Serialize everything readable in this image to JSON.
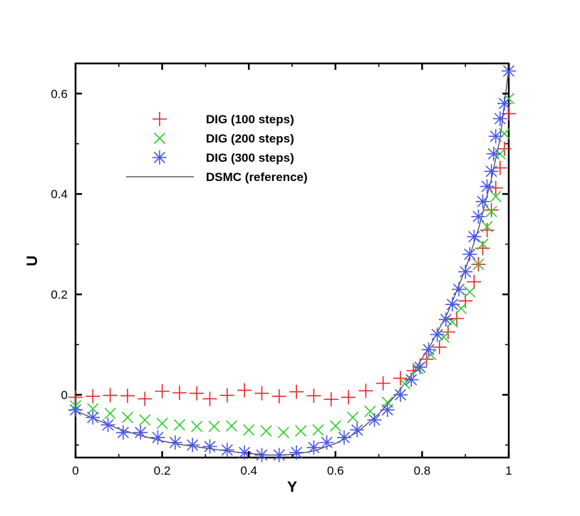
{
  "chart_data": {
    "type": "scatter",
    "title": "",
    "xlabel": "Y",
    "ylabel": "U",
    "xlim": [
      0,
      1
    ],
    "ylim": [
      -0.125,
      0.66
    ],
    "xticks": [
      {
        "value": 0,
        "label": "0"
      },
      {
        "value": 0.2,
        "label": "0.2"
      },
      {
        "value": 0.4,
        "label": "0.4"
      },
      {
        "value": 0.6,
        "label": "0.6"
      },
      {
        "value": 0.8,
        "label": "0.8"
      },
      {
        "value": 1,
        "label": "1"
      }
    ],
    "yticks": [
      {
        "value": 0,
        "label": "0"
      },
      {
        "value": 0.2,
        "label": "0.2"
      },
      {
        "value": 0.4,
        "label": "0.4"
      },
      {
        "value": 0.6,
        "label": "0.6"
      }
    ],
    "grid": false,
    "legend_position": "top-left",
    "series": [
      {
        "name": "DIG (100 steps)",
        "marker": "plus",
        "color": "#e8262b",
        "x": [
          0.0,
          0.04,
          0.08,
          0.12,
          0.16,
          0.2,
          0.24,
          0.28,
          0.31,
          0.35,
          0.39,
          0.43,
          0.47,
          0.51,
          0.55,
          0.59,
          0.63,
          0.67,
          0.71,
          0.75,
          0.78,
          0.81,
          0.84,
          0.86,
          0.88,
          0.9,
          0.92,
          0.93,
          0.94,
          0.95,
          0.96,
          0.97,
          0.98,
          0.99,
          1.0
        ],
        "values": [
          -0.005,
          -0.003,
          -0.001,
          -0.002,
          -0.008,
          0.007,
          0.004,
          0.003,
          -0.008,
          -0.001,
          0.009,
          0.003,
          -0.003,
          0.006,
          -0.002,
          -0.009,
          -0.005,
          0.008,
          0.023,
          0.033,
          0.048,
          0.071,
          0.095,
          0.125,
          0.152,
          0.187,
          0.225,
          0.26,
          0.292,
          0.328,
          0.368,
          0.412,
          0.452,
          0.49,
          0.56
        ]
      },
      {
        "name": "DIG (200 steps)",
        "marker": "cross",
        "color": "#2ecc2e",
        "x": [
          0.0,
          0.04,
          0.08,
          0.12,
          0.16,
          0.2,
          0.24,
          0.28,
          0.32,
          0.36,
          0.4,
          0.44,
          0.48,
          0.52,
          0.56,
          0.6,
          0.64,
          0.68,
          0.72,
          0.76,
          0.79,
          0.82,
          0.85,
          0.87,
          0.89,
          0.91,
          0.93,
          0.94,
          0.95,
          0.96,
          0.97,
          0.98,
          0.99,
          1.0
        ],
        "values": [
          -0.022,
          -0.028,
          -0.037,
          -0.045,
          -0.05,
          -0.057,
          -0.06,
          -0.063,
          -0.063,
          -0.062,
          -0.07,
          -0.072,
          -0.075,
          -0.072,
          -0.07,
          -0.062,
          -0.045,
          -0.033,
          -0.015,
          0.022,
          0.052,
          0.08,
          0.115,
          0.145,
          0.172,
          0.205,
          0.26,
          0.3,
          0.335,
          0.365,
          0.395,
          0.48,
          0.52,
          0.59
        ]
      },
      {
        "name": "DIG (300 steps)",
        "marker": "asterisk",
        "color": "#4a57e6",
        "x": [
          0.0,
          0.04,
          0.075,
          0.11,
          0.15,
          0.19,
          0.23,
          0.27,
          0.31,
          0.35,
          0.39,
          0.43,
          0.47,
          0.51,
          0.55,
          0.58,
          0.62,
          0.65,
          0.69,
          0.72,
          0.75,
          0.775,
          0.795,
          0.815,
          0.835,
          0.855,
          0.87,
          0.885,
          0.9,
          0.91,
          0.92,
          0.93,
          0.94,
          0.95,
          0.96,
          0.965,
          0.97,
          0.98,
          0.99,
          1.0
        ],
        "values": [
          -0.03,
          -0.045,
          -0.06,
          -0.075,
          -0.075,
          -0.085,
          -0.095,
          -0.1,
          -0.103,
          -0.11,
          -0.115,
          -0.12,
          -0.12,
          -0.115,
          -0.105,
          -0.095,
          -0.085,
          -0.07,
          -0.05,
          -0.03,
          0.0,
          0.03,
          0.055,
          0.09,
          0.12,
          0.15,
          0.18,
          0.21,
          0.245,
          0.28,
          0.315,
          0.355,
          0.385,
          0.415,
          0.445,
          0.48,
          0.515,
          0.55,
          0.58,
          0.645
        ]
      },
      {
        "name": "DSMC (reference)",
        "marker": "line",
        "color": "#3c3c3c",
        "x": [
          0.0,
          0.05,
          0.1,
          0.15,
          0.2,
          0.25,
          0.3,
          0.35,
          0.4,
          0.45,
          0.5,
          0.55,
          0.6,
          0.65,
          0.7,
          0.74,
          0.78,
          0.82,
          0.86,
          0.9,
          0.93,
          0.96,
          0.98,
          1.0
        ],
        "values": [
          -0.032,
          -0.05,
          -0.068,
          -0.081,
          -0.092,
          -0.1,
          -0.106,
          -0.112,
          -0.117,
          -0.12,
          -0.119,
          -0.112,
          -0.097,
          -0.075,
          -0.038,
          0.0,
          0.045,
          0.1,
          0.165,
          0.25,
          0.33,
          0.43,
          0.51,
          0.65
        ]
      }
    ]
  }
}
